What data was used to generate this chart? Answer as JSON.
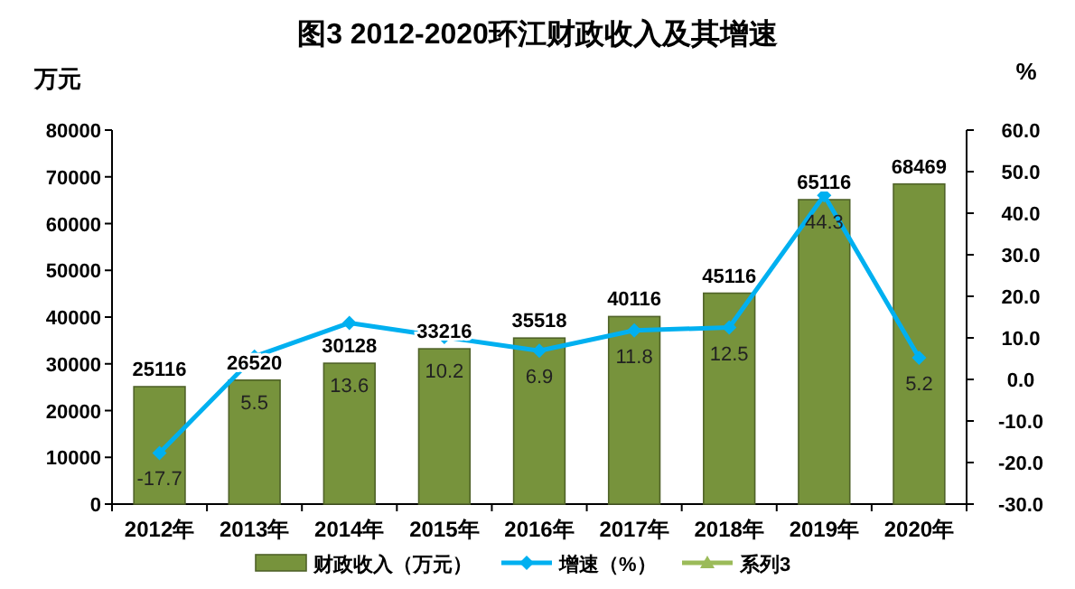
{
  "chart_data": {
    "type": "bar",
    "title": "图3    2012-2020环江财政收入及其增速",
    "ylabel": "万元",
    "y2label": "%",
    "categories": [
      "2012年",
      "2013年",
      "2014年",
      "2015年",
      "2016年",
      "2017年",
      "2018年",
      "2019年",
      "2020年"
    ],
    "series": [
      {
        "name": "财政收入（万元）",
        "color": "#77933c",
        "values": [
          25116,
          26520,
          30128,
          33216,
          35518,
          40116,
          45116,
          65116,
          68469
        ]
      },
      {
        "name": "增速（%）",
        "type": "line",
        "axis": "y2",
        "color": "#00b0f0",
        "marker": "diamond",
        "values": [
          -17.7,
          5.5,
          13.6,
          10.2,
          6.9,
          11.8,
          12.5,
          44.3,
          5.2
        ]
      },
      {
        "name": "系列3",
        "type": "line",
        "color": "#9bbb59",
        "marker": "triangle",
        "values": [
          null,
          null,
          null,
          null,
          null,
          null,
          null,
          null,
          null
        ]
      }
    ],
    "ylim": [
      0,
      80000
    ],
    "yticks": [
      0,
      10000,
      20000,
      30000,
      40000,
      50000,
      60000,
      70000,
      80000
    ],
    "y2lim": [
      -30,
      60
    ],
    "y2ticks": [
      {
        "value": -30,
        "label": "-30.0"
      },
      {
        "value": -20,
        "label": "-20.0"
      },
      {
        "value": -10,
        "label": "-10.0"
      },
      {
        "value": 0,
        "label": "0.0"
      },
      {
        "value": 10,
        "label": "10.0"
      },
      {
        "value": 20,
        "label": "20.0"
      },
      {
        "value": 30,
        "label": "30.0"
      },
      {
        "value": 40,
        "label": "40.0"
      },
      {
        "value": 50,
        "label": "50.0"
      },
      {
        "value": 60,
        "label": "60.0"
      }
    ],
    "data_labels": true,
    "legend": "bottom",
    "grid": false
  }
}
